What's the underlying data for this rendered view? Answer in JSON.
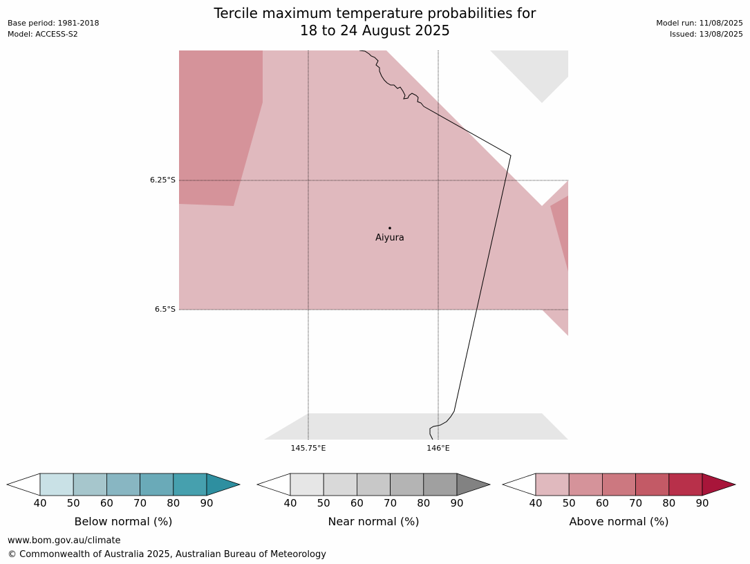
{
  "header": {
    "title_line1": "Tercile maximum temperature probabilities for",
    "title_line2": "18 to 24 August 2025",
    "base_period": "Base period: 1981-2018",
    "model": "Model: ACCESS-S2",
    "model_run": "Model run: 11/08/2025",
    "issued": "Issued: 13/08/2025"
  },
  "map": {
    "place_label": "Aiyura",
    "lat_ticks": [
      "6.25°S",
      "6.5°S"
    ],
    "lon_ticks": [
      "145.75°E",
      "146°E"
    ],
    "colors": {
      "above_40_50": "#e0b9be",
      "above_50_60": "#d5939a",
      "no_data": "#e6e6e6"
    }
  },
  "colorbars": {
    "ticks": [
      "40",
      "50",
      "60",
      "70",
      "80",
      "90"
    ],
    "below": {
      "label": "Below normal (%)",
      "colors": [
        "#c9e1e6",
        "#a6c6cc",
        "#88b6c2",
        "#6aaab8",
        "#46a0ae",
        "#2e8fa0"
      ]
    },
    "near": {
      "label": "Near normal (%)",
      "colors": [
        "#e6e6e6",
        "#d9d9d9",
        "#c8c8c8",
        "#b4b4b4",
        "#a0a0a0",
        "#828282"
      ]
    },
    "above": {
      "label": "Above normal (%)",
      "colors": [
        "#e0b9be",
        "#d5939a",
        "#cc7880",
        "#c35a66",
        "#b8304a",
        "#a8153a"
      ]
    }
  },
  "footer": {
    "url": "www.bom.gov.au/climate",
    "copyright": "© Commonwealth of Australia 2025, Australian Bureau of Meteorology"
  }
}
